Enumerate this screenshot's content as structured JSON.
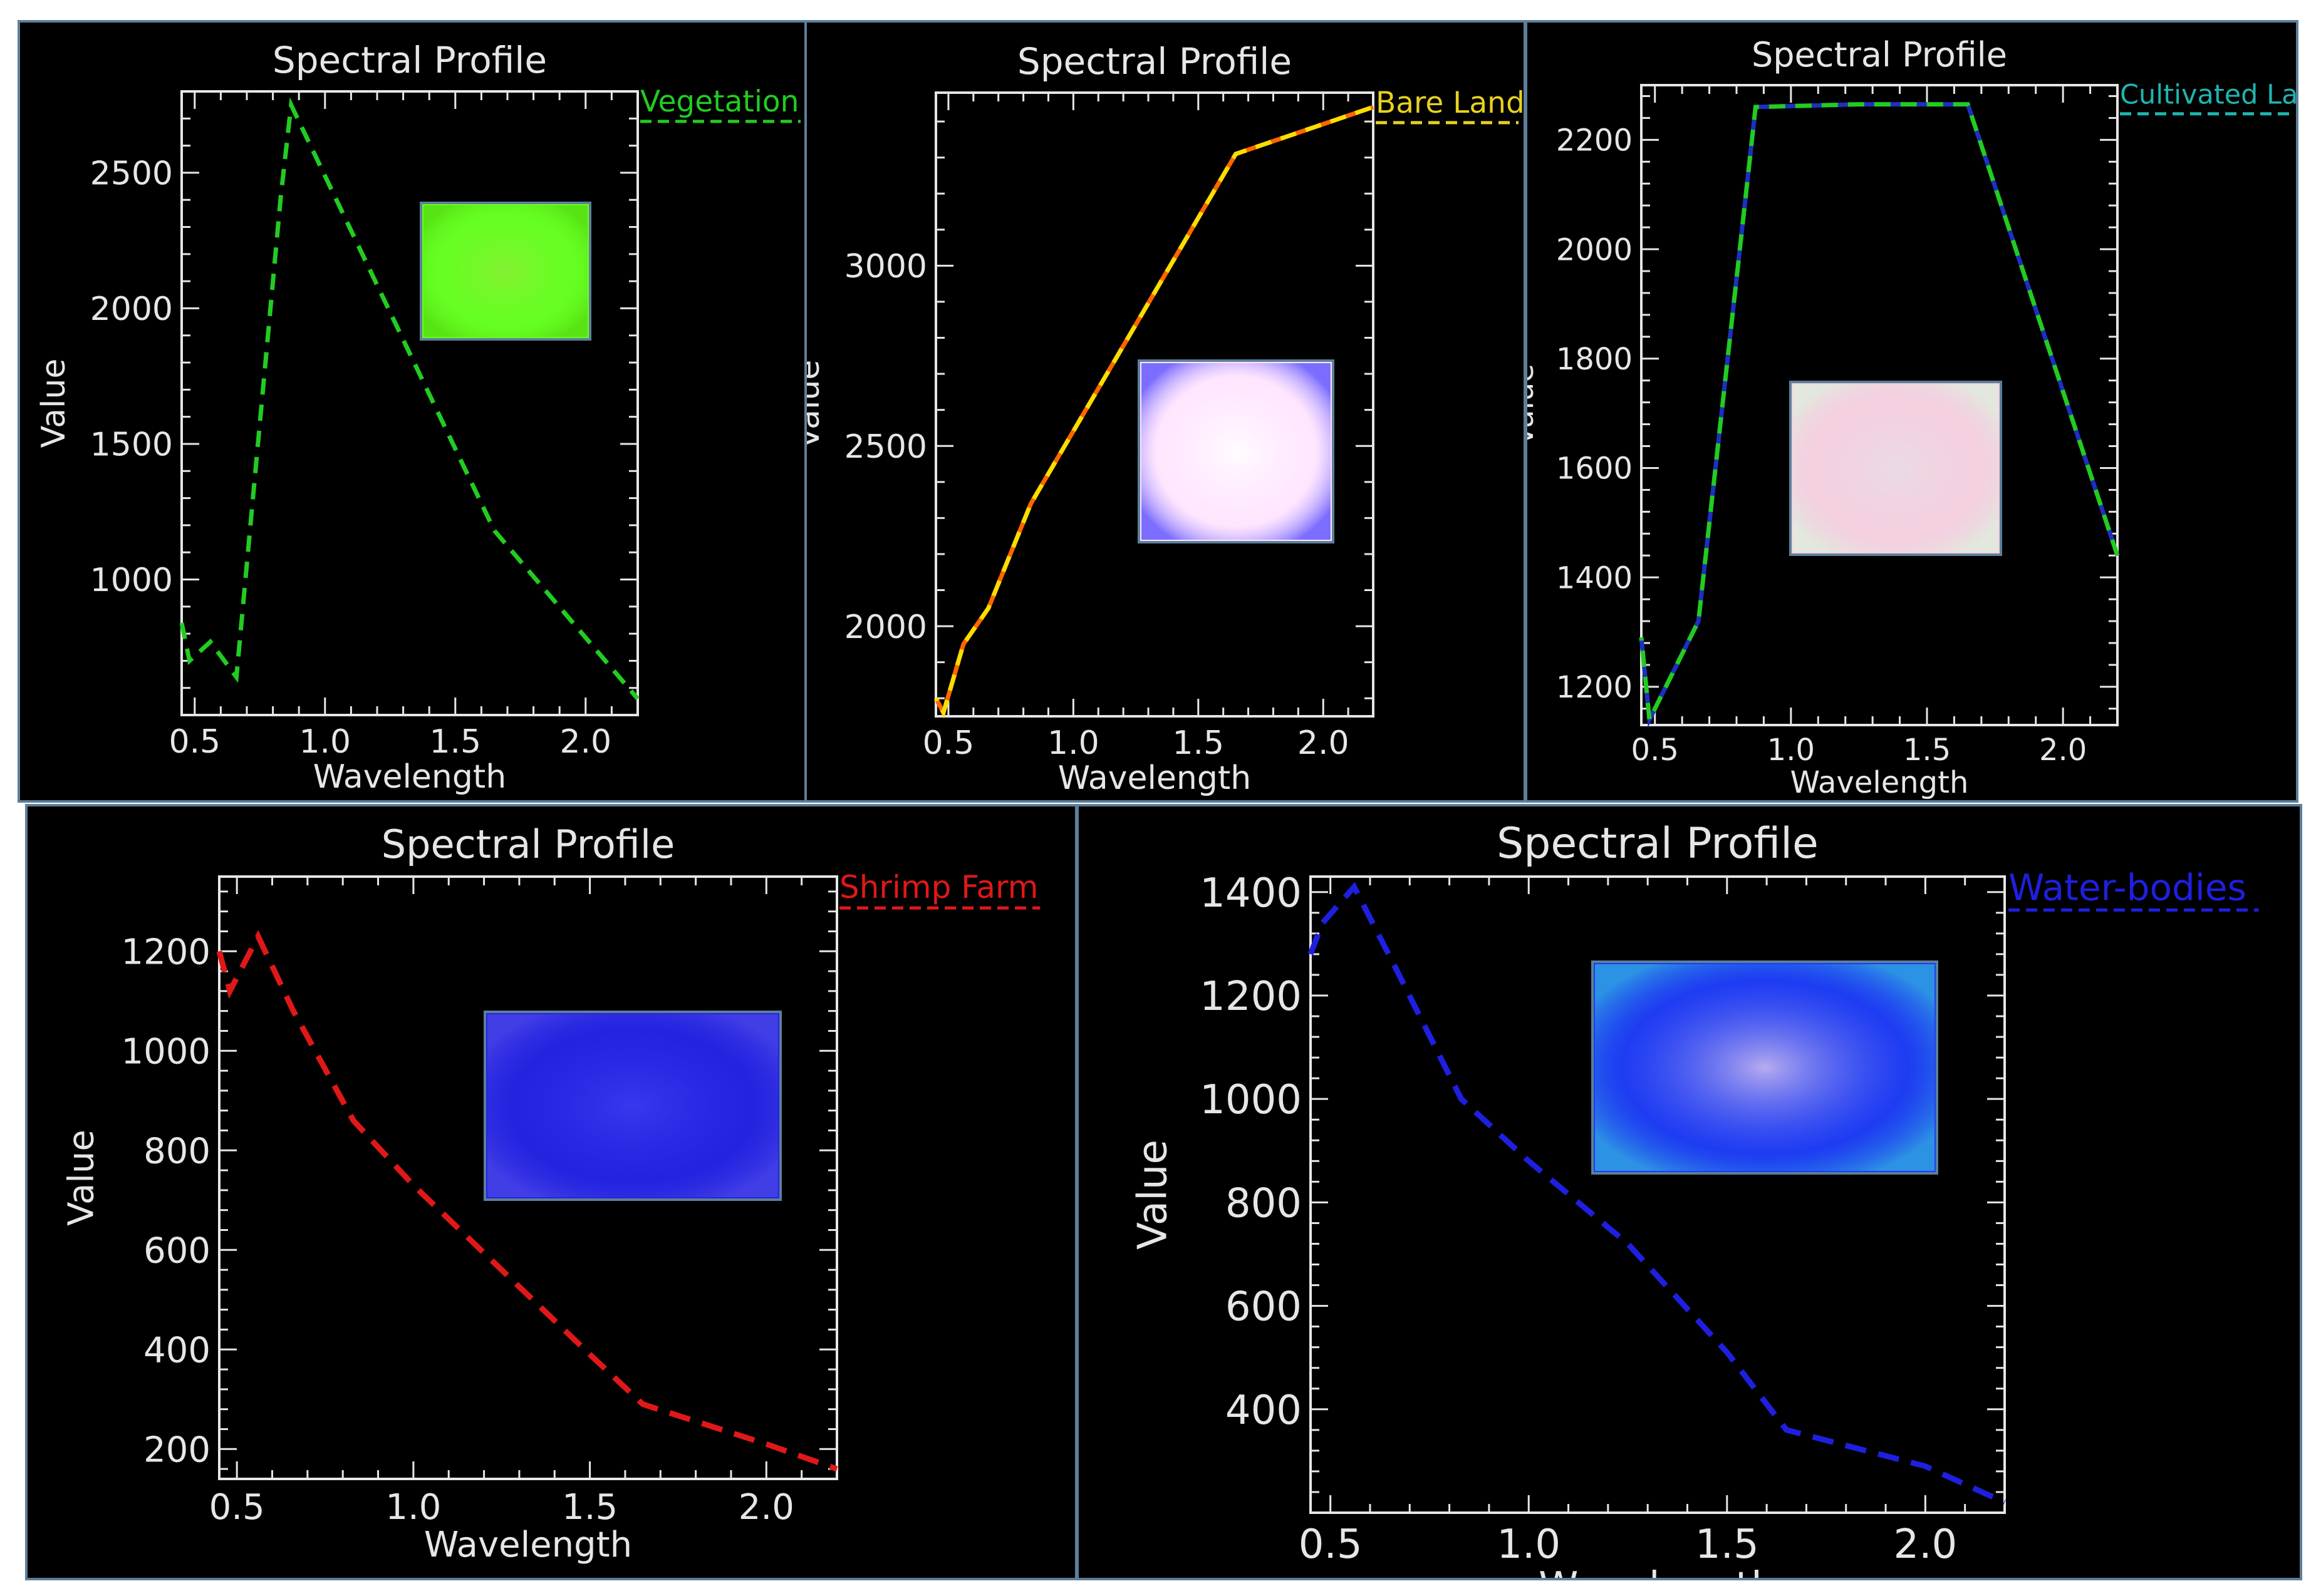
{
  "chart_data": [
    {
      "type": "line",
      "title": "Spectral Profile",
      "xlabel": "Wavelength",
      "ylabel": "Value",
      "xlim": [
        0.45,
        2.2
      ],
      "ylim": [
        500,
        2800
      ],
      "xticks": [
        "0.5",
        "1.0",
        "1.5",
        "2.0"
      ],
      "xtick_values": [
        0.5,
        1.0,
        1.5,
        2.0
      ],
      "yticks": [
        "1000",
        "1500",
        "2000",
        "2500"
      ],
      "ytick_values": [
        1000,
        1500,
        2000,
        2500
      ],
      "series": [
        {
          "name": "Vegetation",
          "color": "#22cc22",
          "dash": true,
          "x": [
            0.45,
            0.48,
            0.56,
            0.66,
            0.83,
            0.87,
            1.65,
            2.2
          ],
          "y": [
            840,
            700,
            770,
            640,
            2410,
            2750,
            1180,
            560
          ]
        }
      ],
      "legend_position": "top-right",
      "inset_image": {
        "name": "vegetation-sample-chip",
        "colors": [
          "#66ff22",
          "#88ee33",
          "#55dd11"
        ]
      }
    },
    {
      "type": "line",
      "title": "Spectral Profile",
      "xlabel": "Wavelength",
      "ylabel": "Value",
      "xlim": [
        0.45,
        2.2
      ],
      "ylim": [
        1750,
        3480
      ],
      "xticks": [
        "0.5",
        "1.0",
        "1.5",
        "2.0"
      ],
      "xtick_values": [
        0.5,
        1.0,
        1.5,
        2.0
      ],
      "yticks": [
        "2000",
        "2500",
        "3000"
      ],
      "ytick_values": [
        2000,
        2500,
        3000
      ],
      "series": [
        {
          "name": "Bare Land",
          "color": "#e8d020",
          "dash_colors": [
            "#ffdd00",
            "#ff6600"
          ],
          "dash": true,
          "x": [
            0.45,
            0.48,
            0.56,
            0.66,
            0.83,
            1.65,
            2.2
          ],
          "y": [
            1800,
            1760,
            1950,
            2050,
            2340,
            3310,
            3440
          ]
        }
      ],
      "legend_position": "top-right",
      "inset_image": {
        "name": "bare-land-sample-chip",
        "colors": [
          "#ffe6ff",
          "#ffffff",
          "#5a4fff"
        ]
      }
    },
    {
      "type": "line",
      "title": "Spectral Profile",
      "xlabel": "Wavelength",
      "ylabel": "Value",
      "xlim": [
        0.45,
        2.2
      ],
      "ylim": [
        1130,
        2300
      ],
      "xticks": [
        "0.5",
        "1.0",
        "1.5",
        "2.0"
      ],
      "xtick_values": [
        0.5,
        1.0,
        1.5,
        2.0
      ],
      "yticks": [
        "1200",
        "1400",
        "1600",
        "1800",
        "2000",
        "2200"
      ],
      "ytick_values": [
        1200,
        1400,
        1600,
        1800,
        2000,
        2200
      ],
      "series": [
        {
          "name": "Cultivated Land",
          "color": "#1fb5b0",
          "dash_colors": [
            "#22cc22",
            "#1f2fbf"
          ],
          "dash": true,
          "x": [
            0.45,
            0.48,
            0.56,
            0.66,
            0.83,
            0.87,
            1.25,
            1.65,
            2.2
          ],
          "y": [
            1290,
            1140,
            1220,
            1320,
            2080,
            2260,
            2265,
            2265,
            1440
          ]
        }
      ],
      "legend_position": "top-right",
      "inset_image": {
        "name": "cultivated-land-sample-chip",
        "colors": [
          "#f4cfe0",
          "#e8dde6",
          "#ddeedd"
        ]
      }
    },
    {
      "type": "line",
      "title": "Spectral Profile",
      "xlabel": "Wavelength",
      "ylabel": "Value",
      "xlim": [
        0.45,
        2.2
      ],
      "ylim": [
        140,
        1350
      ],
      "xticks": [
        "0.5",
        "1.0",
        "1.5",
        "2.0"
      ],
      "xtick_values": [
        0.5,
        1.0,
        1.5,
        2.0
      ],
      "yticks": [
        "200",
        "400",
        "600",
        "800",
        "1000",
        "1200"
      ],
      "ytick_values": [
        200,
        400,
        600,
        800,
        1000,
        1200
      ],
      "series": [
        {
          "name": "Shrimp Farm",
          "color": "#e01818",
          "dash": true,
          "x": [
            0.45,
            0.48,
            0.56,
            0.66,
            0.83,
            1.0,
            1.25,
            1.5,
            1.65,
            2.0,
            2.2
          ],
          "y": [
            1200,
            1120,
            1230,
            1080,
            860,
            730,
            560,
            390,
            290,
            210,
            160
          ]
        }
      ],
      "legend_position": "top-right",
      "inset_image": {
        "name": "shrimp-farm-sample-chip",
        "colors": [
          "#2424e0",
          "#3a3af0",
          "#4a44e8"
        ]
      }
    },
    {
      "type": "line",
      "title": "Spectral Profile",
      "xlabel": "Wavelength",
      "ylabel": "Value",
      "xlim": [
        0.45,
        2.2
      ],
      "ylim": [
        200,
        1430
      ],
      "xticks": [
        "0.5",
        "1.0",
        "1.5",
        "2.0"
      ],
      "xtick_values": [
        0.5,
        1.0,
        1.5,
        2.0
      ],
      "yticks": [
        "400",
        "600",
        "800",
        "1000",
        "1200",
        "1400"
      ],
      "ytick_values": [
        400,
        600,
        800,
        1000,
        1200,
        1400
      ],
      "series": [
        {
          "name": "Water-bodies",
          "color": "#1f1fe0",
          "dash": true,
          "x": [
            0.45,
            0.48,
            0.56,
            0.66,
            0.83,
            1.0,
            1.25,
            1.5,
            1.65,
            2.0,
            2.2
          ],
          "y": [
            1280,
            1340,
            1410,
            1260,
            1000,
            880,
            720,
            510,
            360,
            290,
            220
          ]
        }
      ],
      "legend_position": "top-right",
      "inset_image": {
        "name": "water-bodies-sample-chip",
        "colors": [
          "#1e3cf2",
          "#c8b8ee",
          "#30a8e0"
        ]
      }
    }
  ]
}
